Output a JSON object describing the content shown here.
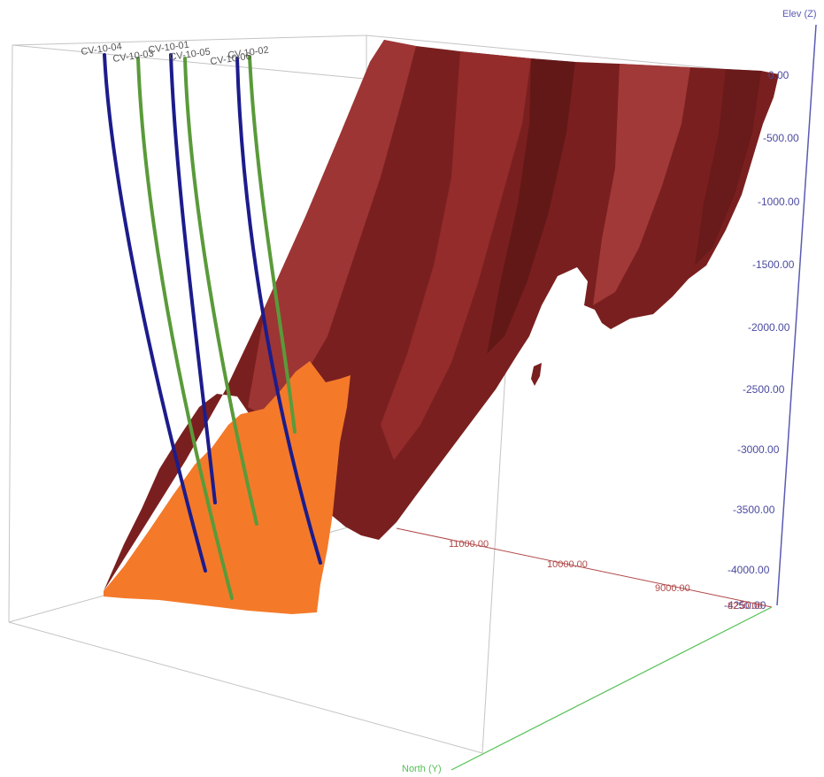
{
  "axes": {
    "elev_title": "Elev (Z)",
    "north_title": "North (Y)",
    "elev_ticks": [
      "0.00",
      "-500.00",
      "-1000.00",
      "-1500.00",
      "-2000.00",
      "-2500.00",
      "-3000.00",
      "-3500.00",
      "-4000.00",
      "-4250.00"
    ],
    "north_ticks": [
      "11000.00",
      "10000.00",
      "9000.00",
      "8250.00"
    ]
  },
  "drillholes": [
    {
      "label": "CV-10-04",
      "color": "#1c1c8c"
    },
    {
      "label": "CV-10-03",
      "color": "#5a9a3a"
    },
    {
      "label": "CV-10-01",
      "color": "#1c1c8c"
    },
    {
      "label": "CV-10-05",
      "color": "#5a9a3a"
    },
    {
      "label": "CV-10-06",
      "color": "#1c1c8c"
    },
    {
      "label": "CV-10-02",
      "color": "#5a9a3a"
    }
  ],
  "colors": {
    "fault_surface": "#7a1f1f",
    "fault_surface_light": "#a33a38",
    "ore_body": "#f47a2a",
    "box_edge": "#b8b8b8",
    "z_axis": "#5a5ab4",
    "north_axis": "#55c055",
    "north_ticks_line": "#b04848"
  }
}
